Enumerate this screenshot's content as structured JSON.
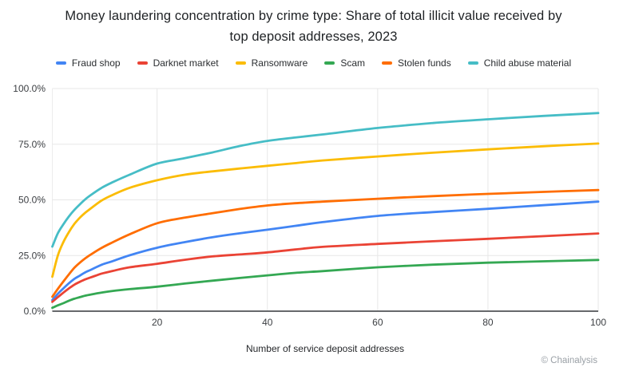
{
  "header": {
    "line1": "Money laundering concentration by crime type: Share of total illicit value received by",
    "line2": "top deposit addresses, 2023"
  },
  "attribution": "© Chainalysis",
  "chart_data": {
    "type": "line",
    "title": "Money laundering concentration by crime type: Share of total illicit value received by top deposit addresses, 2023",
    "xlabel": "Number of service deposit addresses",
    "ylabel": "",
    "xlim": [
      1,
      100
    ],
    "ylim": [
      0,
      100
    ],
    "grid": true,
    "legend_position": "top",
    "x_ticks": [
      20,
      40,
      60,
      80,
      100
    ],
    "y_ticks": [
      "0.0%",
      "25.0%",
      "50.0%",
      "75.0%",
      "100.0%"
    ],
    "x": [
      1,
      2,
      3,
      4,
      5,
      6,
      7,
      8,
      10,
      12,
      15,
      20,
      25,
      30,
      35,
      40,
      45,
      50,
      60,
      70,
      80,
      90,
      100
    ],
    "series": [
      {
        "name": "Fraud shop",
        "color": "#4285F4",
        "values": [
          5,
          7.8,
          10.2,
          12.5,
          14.5,
          16,
          17.5,
          18.6,
          20.9,
          22.5,
          25.1,
          28.5,
          31,
          33.2,
          35,
          36.6,
          38.3,
          40,
          42.8,
          44.5,
          46,
          47.6,
          49.2
        ]
      },
      {
        "name": "Darknet market",
        "color": "#EA4335",
        "values": [
          4.2,
          6.3,
          8.3,
          10.2,
          11.9,
          13.2,
          14.3,
          15.2,
          16.9,
          18.1,
          19.7,
          21.3,
          23.1,
          24.6,
          25.5,
          26.4,
          27.7,
          28.9,
          30.2,
          31.4,
          32.5,
          33.7,
          34.9
        ]
      },
      {
        "name": "Ransomware",
        "color": "#FBBC04",
        "values": [
          15.5,
          25,
          31,
          35.5,
          39.2,
          42,
          44.3,
          46.2,
          49.8,
          52.3,
          55.4,
          58.8,
          61.3,
          62.8,
          64.1,
          65.3,
          66.5,
          67.7,
          69.5,
          71.2,
          72.7,
          74.1,
          75.3
        ]
      },
      {
        "name": "Scam",
        "color": "#34A853",
        "values": [
          1.5,
          2.6,
          3.6,
          4.7,
          5.6,
          6.3,
          7,
          7.5,
          8.4,
          9.1,
          9.9,
          11,
          12.4,
          13.7,
          14.9,
          16.1,
          17.2,
          18,
          19.7,
          20.9,
          21.8,
          22.4,
          23
        ]
      },
      {
        "name": "Stolen funds",
        "color": "#FF6D00",
        "values": [
          6.5,
          10,
          13.3,
          16.5,
          19.5,
          21.8,
          23.8,
          25.5,
          28.5,
          31,
          34.5,
          39.5,
          42,
          44,
          45.9,
          47.5,
          48.5,
          49.2,
          50.5,
          51.7,
          52.7,
          53.6,
          54.4
        ]
      },
      {
        "name": "Child abuse material",
        "color": "#46BDC6",
        "values": [
          29,
          35,
          39,
          42.5,
          45.5,
          48,
          50.3,
          52.2,
          55.5,
          58,
          61.3,
          66.3,
          68.7,
          71.3,
          74.2,
          76.5,
          78,
          79.4,
          82.3,
          84.5,
          86.2,
          87.7,
          89
        ]
      }
    ]
  }
}
